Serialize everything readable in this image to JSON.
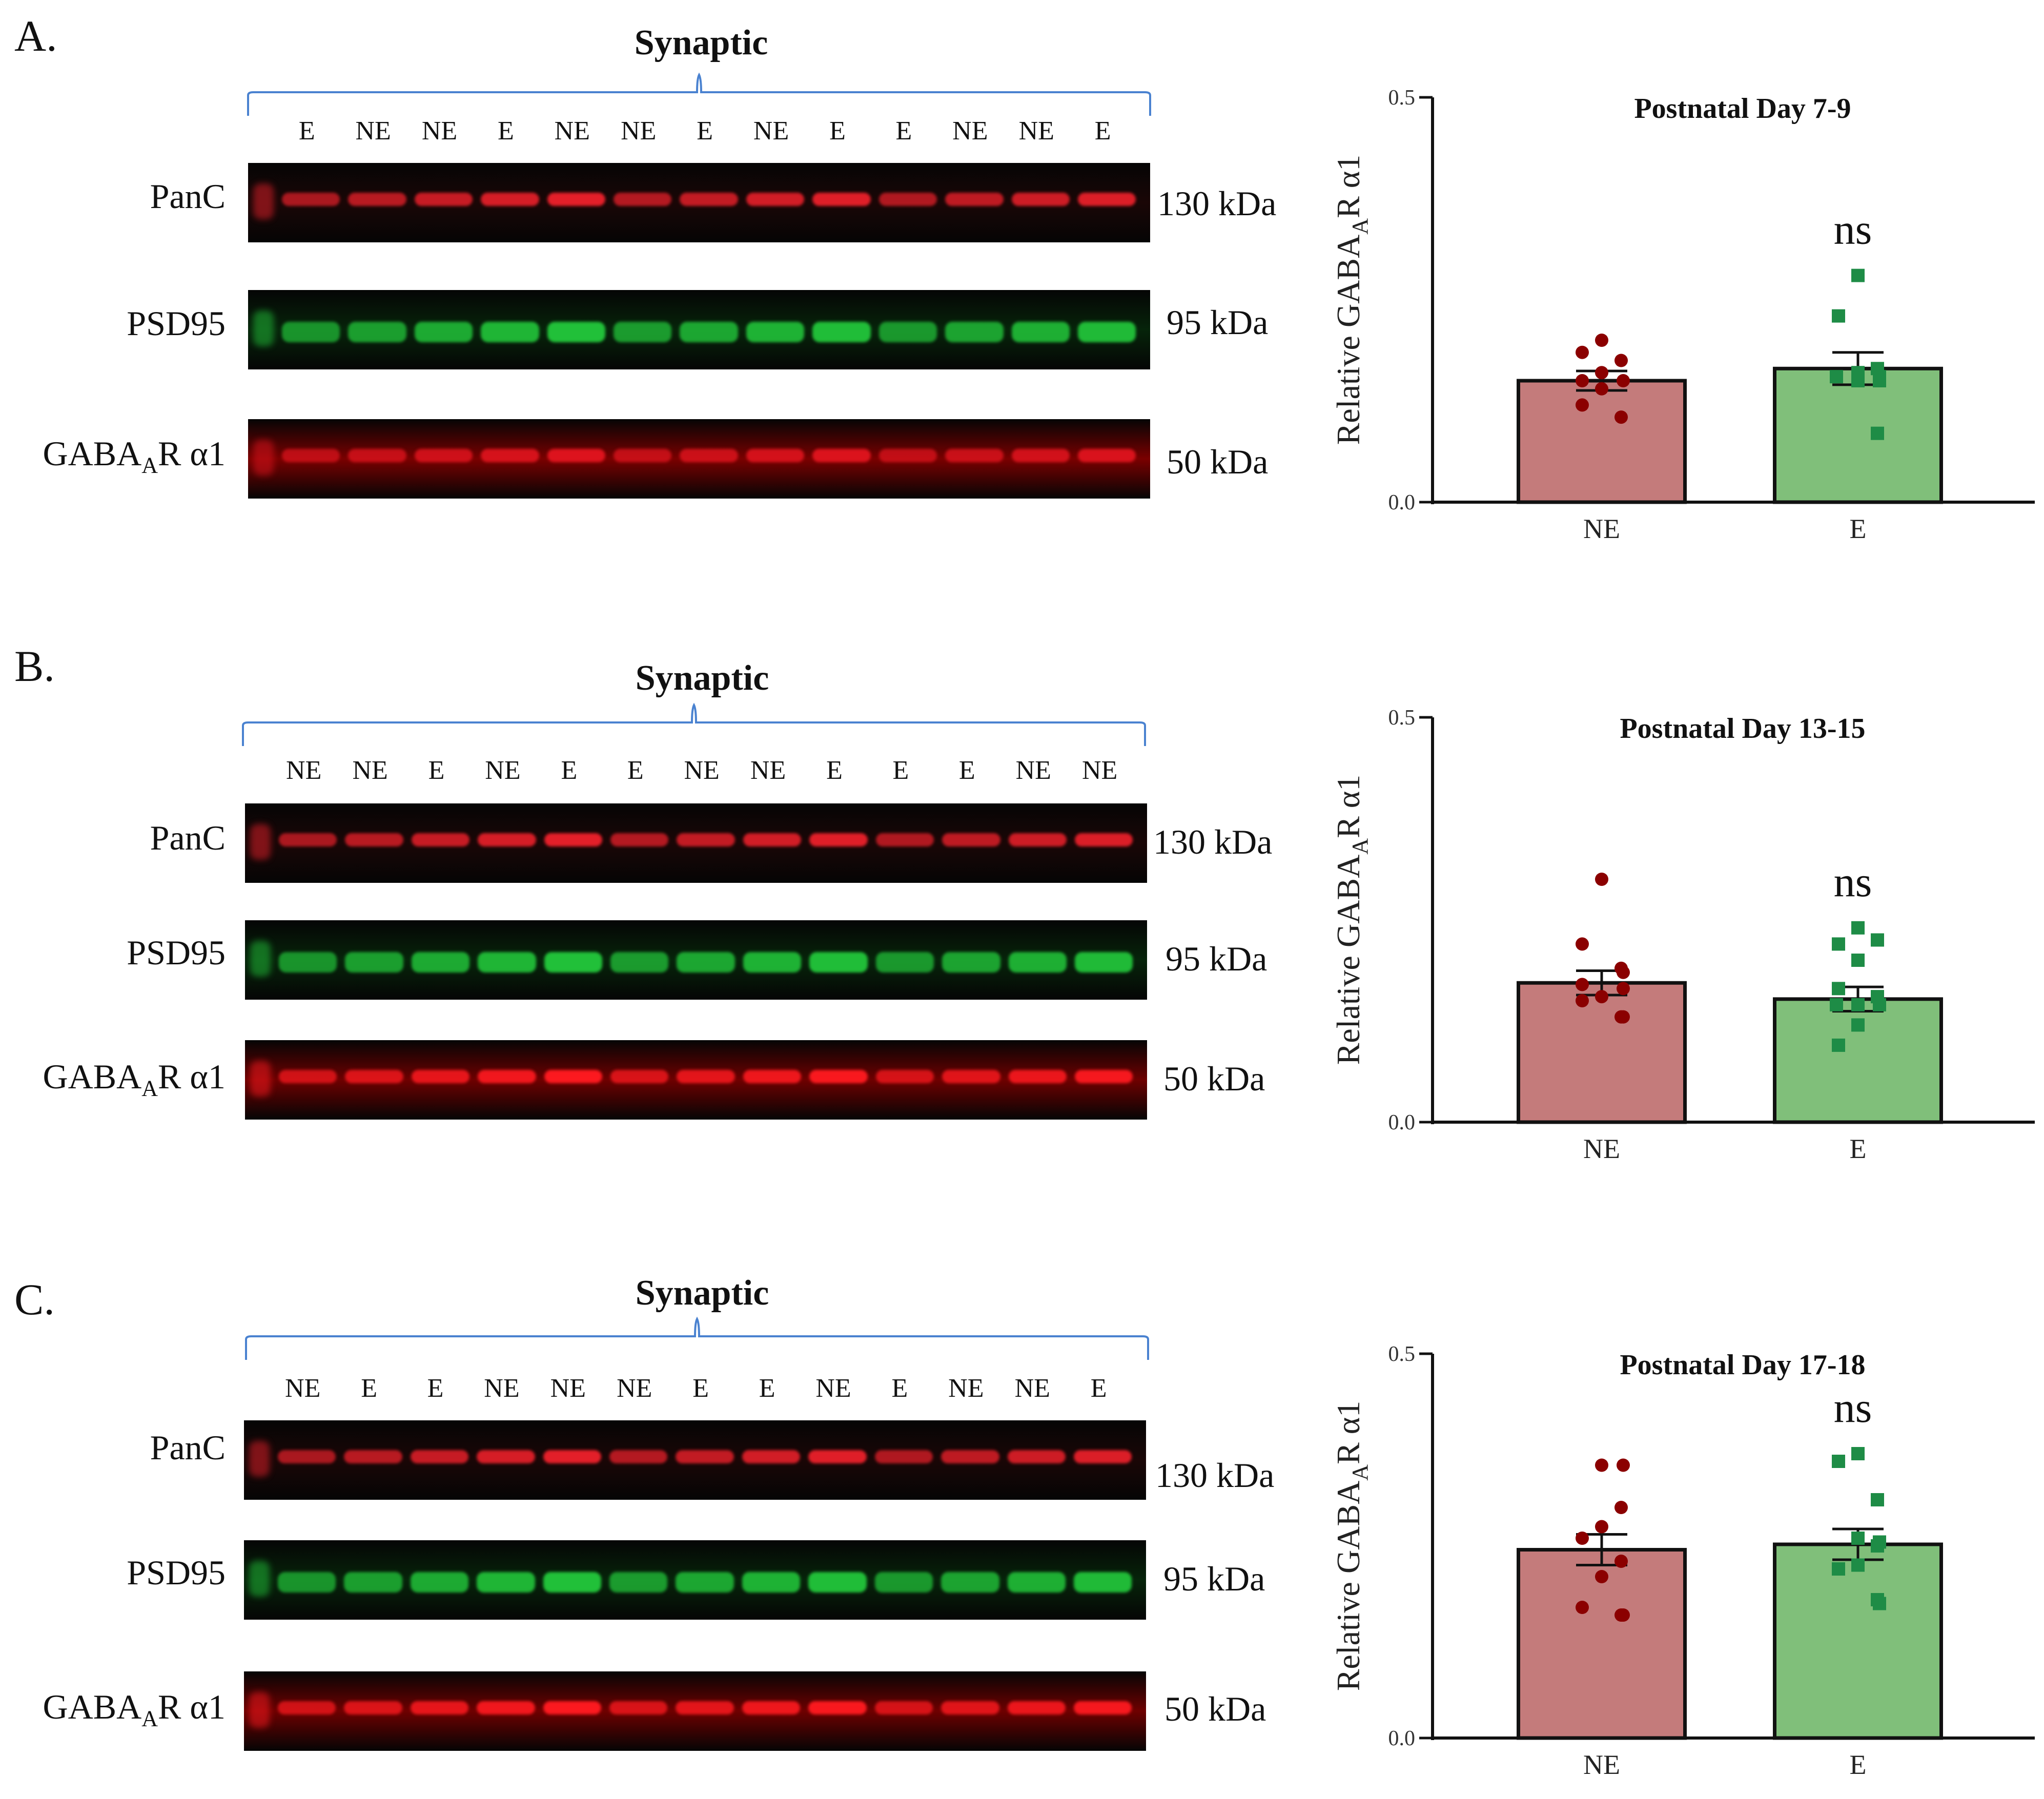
{
  "panels": [
    {
      "letter": "A.",
      "blot_title": "Synaptic",
      "lanes": [
        "E",
        "NE",
        "NE",
        "E",
        "NE",
        "NE",
        "E",
        "NE",
        "E",
        "E",
        "NE",
        "NE",
        "E"
      ],
      "rows": [
        {
          "label": "PanC",
          "kda": "130 kDa",
          "color": "#e8202a",
          "tint": "#1a0606"
        },
        {
          "label": "PSD95",
          "kda": "95 kDa",
          "color": "#22c43a",
          "tint": "#06240a"
        },
        {
          "label_prefix": "GABA",
          "label_sub": "A",
          "label_suffix": "R α1",
          "kda": "50 kDa",
          "color": "#e0141e",
          "tint": "#7a0000"
        }
      ]
    },
    {
      "letter": "B.",
      "blot_title": "Synaptic",
      "lanes": [
        "NE",
        "NE",
        "E",
        "NE",
        "E",
        "E",
        "NE",
        "NE",
        "E",
        "E",
        "E",
        "NE",
        "NE"
      ],
      "rows": [
        {
          "label": "PanC",
          "kda": "130 kDa",
          "color": "#e8202a",
          "tint": "#1a0606"
        },
        {
          "label": "PSD95",
          "kda": "95 kDa",
          "color": "#22c43a",
          "tint": "#06240a"
        },
        {
          "label_prefix": "GABA",
          "label_sub": "A",
          "label_suffix": "R α1",
          "kda": "50 kDa",
          "color": "#ff1a20",
          "tint": "#6e0000"
        }
      ]
    },
    {
      "letter": "C.",
      "blot_title": "Synaptic",
      "lanes": [
        "NE",
        "E",
        "E",
        "NE",
        "NE",
        "NE",
        "E",
        "E",
        "NE",
        "E",
        "NE",
        "NE",
        "E"
      ],
      "rows": [
        {
          "label": "PanC",
          "kda": "130 kDa",
          "color": "#e8202a",
          "tint": "#1a0606"
        },
        {
          "label": "PSD95",
          "kda": "95 kDa",
          "color": "#22c43a",
          "tint": "#06240a"
        },
        {
          "label_prefix": "GABA",
          "label_sub": "A",
          "label_suffix": "R α1",
          "kda": "50 kDa",
          "color": "#ff1a20",
          "tint": "#6e0000"
        }
      ]
    }
  ],
  "chart_data": [
    {
      "type": "bar",
      "title": "Postnatal Day 7-9",
      "categories": [
        "NE",
        "E"
      ],
      "values": [
        0.15,
        0.165
      ],
      "sem": [
        0.012,
        0.02
      ],
      "points": [
        [
          0.2,
          0.185,
          0.175,
          0.16,
          0.15,
          0.15,
          0.14,
          0.12,
          0.105
        ],
        [
          0.28,
          0.23,
          0.165,
          0.16,
          0.155,
          0.155,
          0.15,
          0.15,
          0.085
        ]
      ],
      "ylabel_prefix": "Relative GABA",
      "ylabel_sub": "A",
      "ylabel_suffix": "R α1",
      "ylim": [
        0.0,
        0.5
      ],
      "yticks": [
        "0.0",
        "0.5"
      ],
      "annotation": "ns",
      "colors": {
        "NE_bar": "#c47b7b",
        "E_bar": "#80bf7a",
        "NE_point": "#8b0000",
        "E_point": "#1e8c46"
      }
    },
    {
      "type": "bar",
      "title": "Postnatal Day 13-15",
      "categories": [
        "NE",
        "E"
      ],
      "values": [
        0.172,
        0.152
      ],
      "sem": [
        0.015,
        0.015
      ],
      "points": [
        [
          0.3,
          0.22,
          0.19,
          0.185,
          0.17,
          0.165,
          0.155,
          0.15,
          0.13,
          0.13
        ],
        [
          0.24,
          0.22,
          0.225,
          0.2,
          0.165,
          0.155,
          0.145,
          0.145,
          0.145,
          0.12,
          0.095
        ]
      ],
      "ylabel_prefix": "Relative GABA",
      "ylabel_sub": "A",
      "ylabel_suffix": "R α1",
      "ylim": [
        0.0,
        0.5
      ],
      "yticks": [
        "0.0",
        "0.5"
      ],
      "annotation": "ns",
      "colors": {
        "NE_bar": "#c47b7b",
        "E_bar": "#80bf7a",
        "NE_point": "#8b0000",
        "E_point": "#1e8c46"
      }
    },
    {
      "type": "bar",
      "title": "Postnatal Day 17-18",
      "categories": [
        "NE",
        "E"
      ],
      "values": [
        0.245,
        0.252
      ],
      "sem": [
        0.02,
        0.02
      ],
      "points": [
        [
          0.355,
          0.355,
          0.3,
          0.275,
          0.26,
          0.23,
          0.21,
          0.17,
          0.16,
          0.16
        ],
        [
          0.37,
          0.36,
          0.31,
          0.26,
          0.255,
          0.25,
          0.225,
          0.22,
          0.18,
          0.175
        ]
      ],
      "ylabel_prefix": "Relative GABA",
      "ylabel_sub": "A",
      "ylabel_suffix": "R α1",
      "ylim": [
        0.0,
        0.5
      ],
      "yticks": [
        "0.0",
        "0.5"
      ],
      "annotation": "ns",
      "colors": {
        "NE_bar": "#c47b7b",
        "E_bar": "#80bf7a",
        "NE_point": "#8b0000",
        "E_point": "#1e8c46"
      }
    }
  ]
}
